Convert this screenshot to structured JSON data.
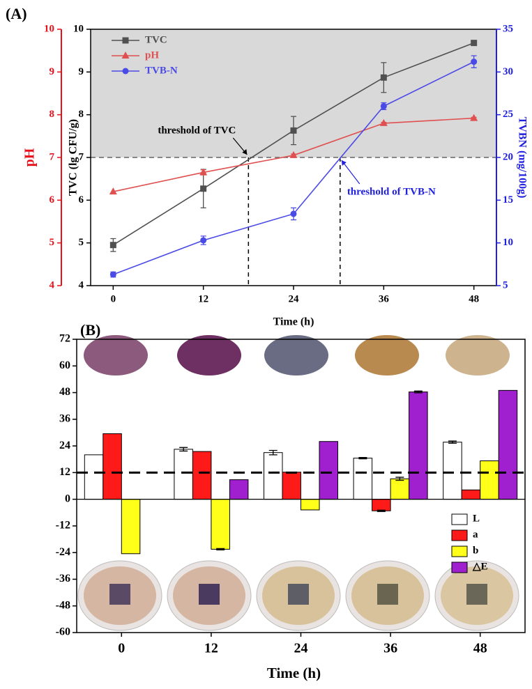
{
  "chart_data": [
    {
      "type": "line",
      "panel_label": "(A)",
      "x": [
        0,
        12,
        24,
        36,
        48
      ],
      "xlim": [
        -3,
        51
      ],
      "xticks": [
        0,
        12,
        24,
        36,
        48
      ],
      "xlabel": "Time (h)",
      "ylim": [
        4,
        10
      ],
      "yticks": [
        4,
        5,
        6,
        7,
        8,
        9,
        10
      ],
      "ylabel": "TVC (lg CFU/g)",
      "y2lim": [
        5,
        35
      ],
      "y2ticks": [
        5,
        10,
        15,
        20,
        25,
        30,
        35
      ],
      "y2label": "TVBN (mg/100g)",
      "y3lim": [
        4,
        10
      ],
      "y3ticks": [
        4,
        5,
        6,
        7,
        8,
        9,
        10
      ],
      "y3label": "pH",
      "series": [
        {
          "name": "TVC",
          "color": "#505050",
          "marker": "square",
          "values": [
            4.95,
            6.27,
            7.63,
            8.87,
            9.68
          ],
          "errors": [
            0.15,
            0.45,
            0.33,
            0.35,
            0.05
          ]
        },
        {
          "name": "pH",
          "color": "#e05050",
          "marker": "triangle",
          "axis": "y3",
          "values": [
            6.2,
            6.65,
            7.05,
            7.8,
            7.92
          ],
          "errors": [
            0,
            0.06,
            0.03,
            0.02,
            0.02
          ]
        },
        {
          "name": "TVB-N",
          "color": "#4a4ae6",
          "marker": "circle",
          "axis": "y2",
          "values": [
            6.3,
            10.3,
            13.4,
            26.0,
            31.2
          ],
          "errors": [
            0.3,
            0.5,
            0.7,
            0.4,
            0.7
          ]
        }
      ],
      "threshold_y": 7,
      "annotations": [
        {
          "text": "threshold of TVC",
          "x": 18,
          "color": "#000000"
        },
        {
          "text": "threshold of TVB-N",
          "x": 30.2,
          "color": "#2020e0"
        }
      ]
    },
    {
      "type": "bar",
      "panel_label": "(B)",
      "categories": [
        "0",
        "12",
        "24",
        "36",
        "48"
      ],
      "xlabel": "Time (h)",
      "ylim": [
        -60,
        72
      ],
      "yticks": [
        -60,
        -48,
        -36,
        -24,
        -12,
        0,
        12,
        24,
        36,
        48,
        60,
        72
      ],
      "reference_line": 12,
      "series": [
        {
          "name": "L",
          "color": "#ffffff",
          "values": [
            20,
            22.5,
            21,
            18.5,
            25.7
          ],
          "errors": [
            0,
            0.8,
            1,
            0.3,
            0.5
          ]
        },
        {
          "name": "a",
          "color": "#ff1a1a",
          "values": [
            29.5,
            21.5,
            12.2,
            -5.2,
            4.2
          ],
          "errors": [
            0,
            0,
            0,
            0.3,
            0
          ]
        },
        {
          "name": "b",
          "color": "#ffff1a",
          "values": [
            -24.5,
            -22.5,
            -4.8,
            9.2,
            17.3
          ],
          "errors": [
            0,
            0.3,
            0,
            0.7,
            0
          ]
        },
        {
          "name": "△E",
          "color": "#a020d0",
          "values": [
            0,
            8.8,
            26,
            48.3,
            49
          ],
          "errors": [
            0,
            0,
            0,
            0.4,
            0
          ]
        }
      ]
    }
  ]
}
